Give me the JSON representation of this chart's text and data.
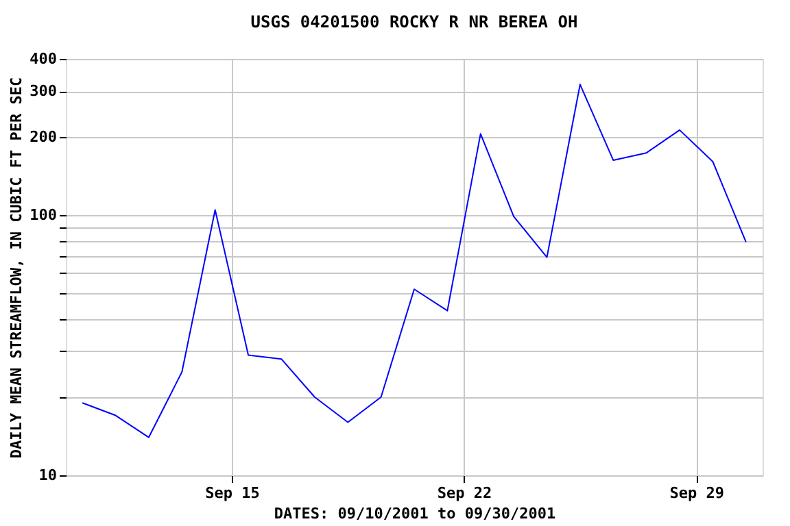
{
  "chart_data": {
    "type": "line",
    "title": "USGS 04201500 ROCKY R NR BEREA OH",
    "xlabel": "DATES: 09/10/2001 to 09/30/2001",
    "ylabel": "DAILY MEAN STREAMFLOW, IN CUBIC FT PER SEC",
    "x": [
      "2001-09-10T12:00",
      "2001-09-11T12:00",
      "2001-09-12T12:00",
      "2001-09-13T12:00",
      "2001-09-14T12:00",
      "2001-09-15T12:00",
      "2001-09-16T12:00",
      "2001-09-17T12:00",
      "2001-09-18T12:00",
      "2001-09-19T12:00",
      "2001-09-20T12:00",
      "2001-09-21T12:00",
      "2001-09-22T12:00",
      "2001-09-23T12:00",
      "2001-09-24T12:00",
      "2001-09-25T12:00",
      "2001-09-26T12:00",
      "2001-09-27T12:00",
      "2001-09-28T12:00",
      "2001-09-29T12:00",
      "2001-09-30T12:00"
    ],
    "series": [
      {
        "color": "#0000ff",
        "values": [
          19,
          17,
          14,
          25,
          105,
          29,
          28,
          20,
          16,
          20,
          52,
          43,
          206,
          99,
          69,
          319,
          163,
          174,
          213,
          161,
          79
        ]
      }
    ],
    "xlim": [
      "2001-09-10",
      "2001-10-01"
    ],
    "xticks": [
      {
        "value": "2001-09-15",
        "label": "Sep 15"
      },
      {
        "value": "2001-09-22",
        "label": "Sep 22"
      },
      {
        "value": "2001-09-29",
        "label": "Sep 29"
      }
    ],
    "ylim": [
      10,
      400
    ],
    "yticks": [
      10,
      {
        "value": 20,
        "label": null
      },
      {
        "value": 30,
        "label": null
      },
      {
        "value": 40,
        "label": null
      },
      {
        "value": 50,
        "label": null
      },
      {
        "value": 60,
        "label": null
      },
      {
        "value": 70,
        "label": null
      },
      {
        "value": 80,
        "label": null
      },
      {
        "value": 90,
        "label": null
      },
      100,
      200,
      300,
      400
    ],
    "log": true,
    "grid": true,
    "marker": "none",
    "line_style": "solid"
  }
}
